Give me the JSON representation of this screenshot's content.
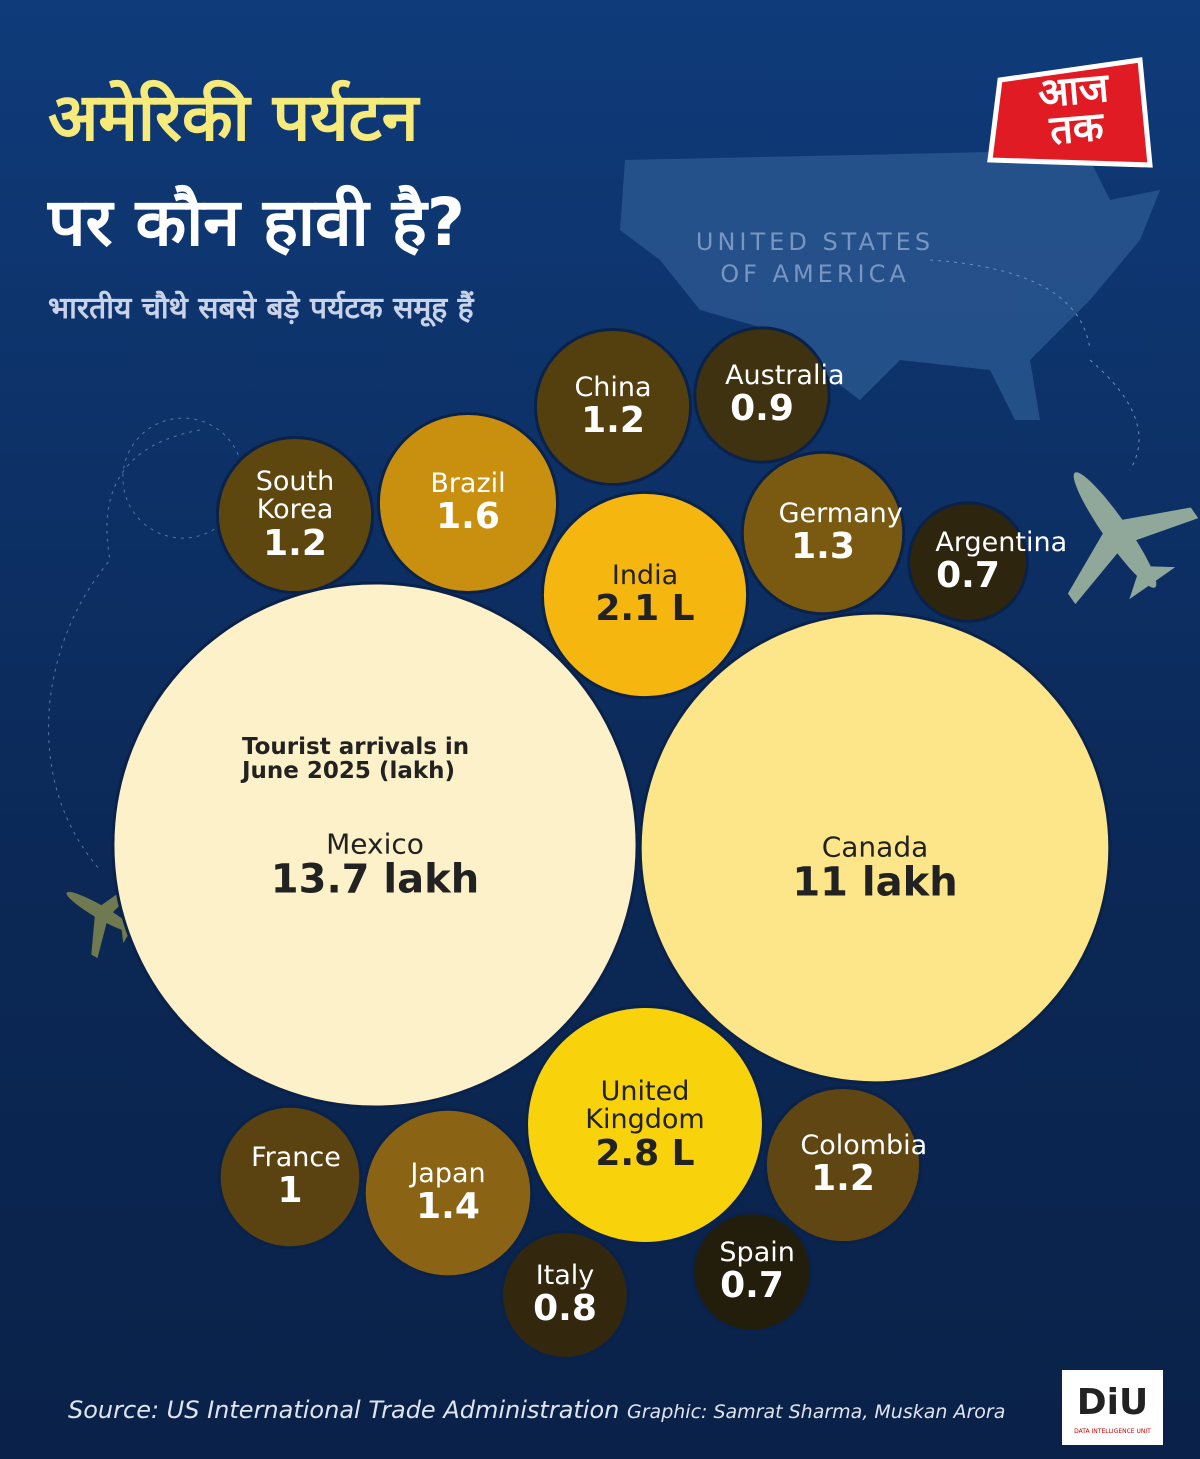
{
  "header": {
    "title_lines": [
      "अमेरिकी पर्यटन",
      "पर कौन हावी है?"
    ],
    "subtitle": "भारतीय चौथे सबसे बड़े पर्यटक समूह हैं",
    "logo": "आज तक",
    "map_label_lines": [
      "UNITED STATES",
      "OF AMERICA"
    ]
  },
  "chart_data": {
    "type": "bubble",
    "note": "Tourist arrivals in June 2025 (lakh)",
    "categories": [
      "Mexico",
      "Canada",
      "India",
      "United Kingdom",
      "Brazil",
      "China",
      "Australia",
      "Germany",
      "Argentina",
      "South Korea",
      "France",
      "Japan",
      "Italy",
      "Spain",
      "Colombia"
    ],
    "values": [
      13.7,
      11,
      2.1,
      2.8,
      1.6,
      1.2,
      0.9,
      1.3,
      0.7,
      1.2,
      1,
      1.4,
      0.8,
      0.7,
      1.2
    ],
    "value_labels": [
      "13.7 lakh",
      "11 lakh",
      "2.1 L",
      "2.8 L",
      "1.6",
      "1.2",
      "0.9",
      "1.3",
      "0.7",
      "1.2",
      "1",
      "1.4",
      "0.8",
      "0.7",
      "1.2"
    ],
    "colors": [
      "#fdf1c9",
      "#fde68a",
      "#f5b70f",
      "#f8d20a",
      "#c9900f",
      "#54400e",
      "#3f3210",
      "#7a5a10",
      "#2d250e",
      "#5e460f",
      "#5a4310",
      "#8a6315",
      "#33280d",
      "#231d0c",
      "#5f4612"
    ]
  },
  "footer": {
    "source": "Source: US International Trade Administration",
    "credit": "Graphic: Samrat Sharma, Muskan Arora",
    "badge": "DiU",
    "badge_sub": "DATA INTELLIGENCE UNIT"
  }
}
